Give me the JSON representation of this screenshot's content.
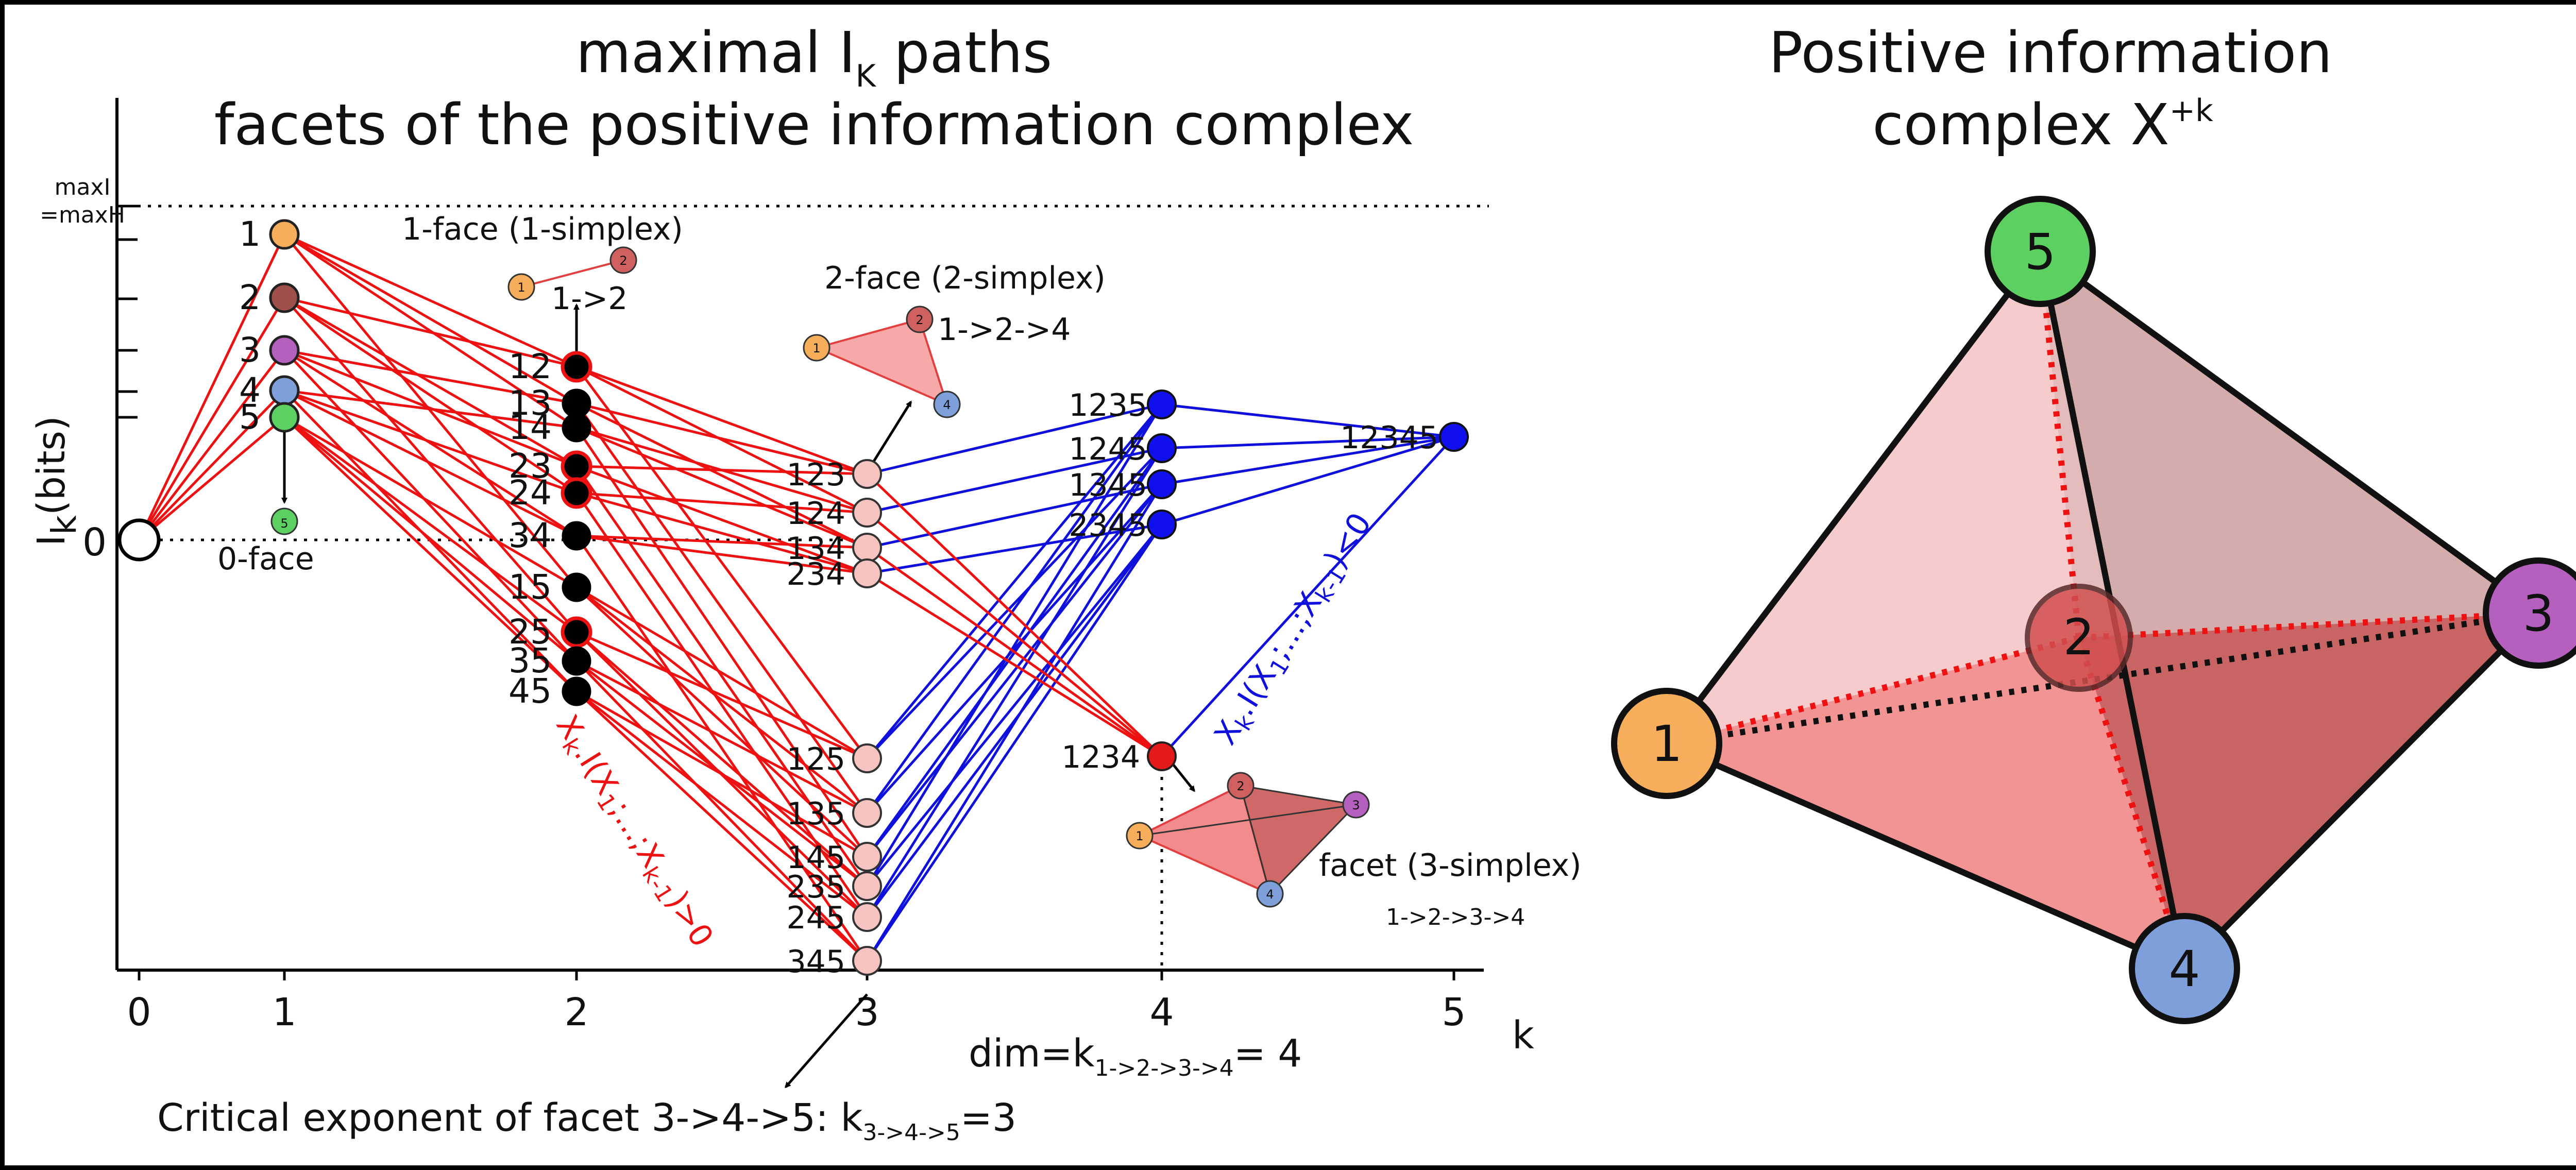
{
  "left_panel": {
    "title_line1": "maximal I",
    "title_sub": "K",
    "title_line1_end": " paths",
    "title_line2": "facets of the positive information complex",
    "y_axis_label": "I",
    "y_axis_label_sub": "k",
    "y_axis_label_end": "(bits)",
    "x_axis_label": "k",
    "x_ticks": [
      "0",
      "1",
      "2",
      "3",
      "4",
      "5"
    ],
    "maxI_line1": "maxI",
    "maxI_line2": "=maxH",
    "zero_label": "0",
    "zero_face_label": "0-face",
    "one_face_label": "1-face (1-simplex)",
    "one_face_path": "1->2",
    "two_face_label": "2-face (2-simplex)",
    "two_face_path": "1->2->4",
    "facet_label": "facet (3-simplex)",
    "facet_path": "1->2->3->4",
    "positive_cond": "X",
    "positive_cond_sub": "k",
    "positive_cond_mid": ".I(X",
    "positive_cond_sub1": "1",
    "positive_cond_mid2": ";...;X",
    "positive_cond_sub2": "k-1",
    "positive_cond_end": ")>0",
    "negative_cond": "X",
    "negative_cond_sub": "k",
    "negative_cond_mid": ".I(X",
    "negative_cond_sub1": "1",
    "negative_cond_mid2": ";...;X",
    "negative_cond_sub2": "k-1",
    "negative_cond_end": ")<0",
    "dim_text": "dim=k",
    "dim_sub": "1->2->3->4",
    "dim_end": "= 4",
    "critical_text": "Critical exponent of facet 3->4->5: k",
    "critical_sub": "3->4->5",
    "critical_end": "=3",
    "k1_labels": [
      "1",
      "2",
      "3",
      "4",
      "5"
    ],
    "k1_colors": [
      "#f6ae5a",
      "#a0504a",
      "#b55fbe",
      "#7f9fdb",
      "#5cd060"
    ],
    "k2_labels": [
      "12",
      "13",
      "14",
      "23",
      "24",
      "34",
      "15",
      "25",
      "35",
      "45"
    ],
    "k3_labels": [
      "123",
      "124",
      "134",
      "234",
      "125",
      "135",
      "145",
      "235",
      "245",
      "345"
    ],
    "k4_labels": [
      "1235",
      "1245",
      "1345",
      "2345",
      "1234"
    ],
    "k5_label": "12345",
    "mini_node_labels": [
      "1",
      "2",
      "3",
      "4",
      "5"
    ]
  },
  "right_panel": {
    "title_line1": "Positive information",
    "title_line2": "complex X",
    "title_sup": "+k",
    "vertices": [
      {
        "label": "1",
        "color": "#f6ae5a"
      },
      {
        "label": "2",
        "color": "#d24f4f"
      },
      {
        "label": "3",
        "color": "#b55fbe"
      },
      {
        "label": "4",
        "color": "#7f9fdb"
      },
      {
        "label": "5",
        "color": "#5cd060"
      }
    ]
  },
  "colors": {
    "positive_red": "#ee1111",
    "negative_blue": "#1010dd",
    "k2_node": "#000000",
    "k3_node": "#f6c4c0",
    "k4_node": "#1010ee",
    "facet_node": "#e41a1a"
  }
}
